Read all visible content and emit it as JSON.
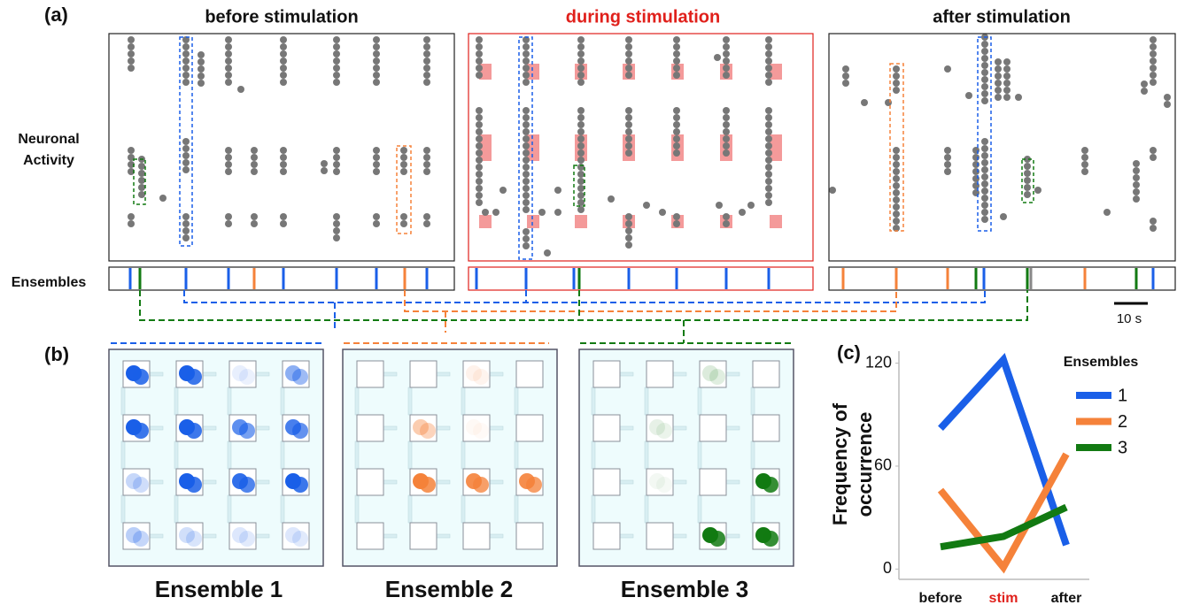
{
  "panel_a": {
    "label": "(a)",
    "titles": [
      "before stimulation",
      "during stimulation",
      "after stimulation"
    ],
    "row_labels": {
      "activity": [
        "Neuronal",
        "Activity"
      ],
      "ensembles": "Ensembles"
    },
    "scale_bar": "10 s"
  },
  "panel_b": {
    "label": "(b)",
    "ensembles": [
      "Ensemble 1",
      "Ensemble 2",
      "Ensemble 3"
    ]
  },
  "chart_data": {
    "type": "line",
    "label": "(c)",
    "y_label": [
      "Frequency of",
      "occurrence"
    ],
    "categories": [
      "before",
      "stim",
      "after"
    ],
    "legend_title": "Ensembles",
    "series": [
      {
        "name": "1",
        "color": "#1a5fe8",
        "values": [
          82,
          122,
          14
        ]
      },
      {
        "name": "2",
        "color": "#f5823a",
        "values": [
          46,
          1,
          67
        ]
      },
      {
        "name": "3",
        "color": "#127a12",
        "values": [
          13,
          19,
          36
        ]
      }
    ],
    "ylim": [
      -6,
      127
    ],
    "yticks": [
      0,
      60,
      120
    ]
  }
}
